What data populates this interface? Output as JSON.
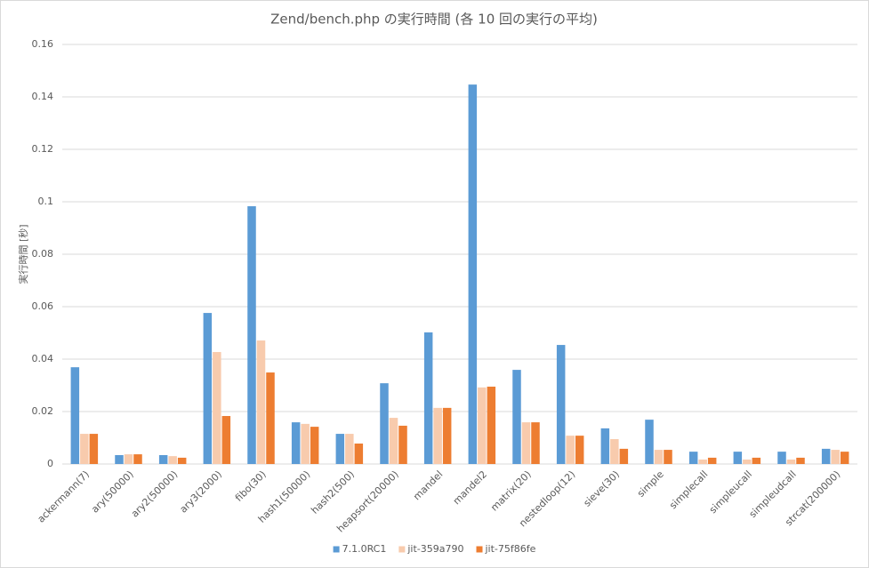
{
  "chart_data": {
    "type": "bar",
    "title": "Zend/bench.php の実行時間 (各 10 回の実行の平均)",
    "y_label": "実行時間 [秒]",
    "categories": [
      "ackermann(7)",
      "ary(50000)",
      "ary2(50000)",
      "ary3(2000)",
      "fibo(30)",
      "hash1(50000)",
      "hash2(500)",
      "heapsort(20000)",
      "mandel",
      "mandel2",
      "matrix(20)",
      "nestedloop(12)",
      "sieve(30)",
      "simple",
      "simplecall",
      "simpleucall",
      "simpleudcall",
      "strcat(200000)"
    ],
    "series": [
      {
        "name": "7.1.0RC1",
        "color": "#5b9bd5",
        "values": [
          0.0369,
          0.0034,
          0.0034,
          0.0576,
          0.0983,
          0.0159,
          0.0115,
          0.0308,
          0.0502,
          0.1447,
          0.0359,
          0.0454,
          0.0136,
          0.0169,
          0.0047,
          0.0047,
          0.0047,
          0.0058
        ]
      },
      {
        "name": "jit-359a790",
        "color": "#f8cbad",
        "values": [
          0.0115,
          0.0037,
          0.003,
          0.0427,
          0.0471,
          0.0153,
          0.0115,
          0.0176,
          0.0214,
          0.0292,
          0.0159,
          0.0108,
          0.0095,
          0.0054,
          0.0017,
          0.0017,
          0.0017,
          0.0054
        ]
      },
      {
        "name": "jit-75f86fe",
        "color": "#ed7d31",
        "values": [
          0.0115,
          0.0037,
          0.0024,
          0.0183,
          0.0349,
          0.0142,
          0.0078,
          0.0146,
          0.0214,
          0.0295,
          0.0159,
          0.0108,
          0.0058,
          0.0054,
          0.0024,
          0.0024,
          0.0024,
          0.0047
        ]
      }
    ],
    "ylim": [
      0,
      0.16
    ],
    "yticks": [
      0,
      0.02,
      0.04,
      0.06,
      0.08,
      0.1,
      0.12,
      0.14,
      0.16
    ],
    "grid": true,
    "legend": "bottom"
  }
}
